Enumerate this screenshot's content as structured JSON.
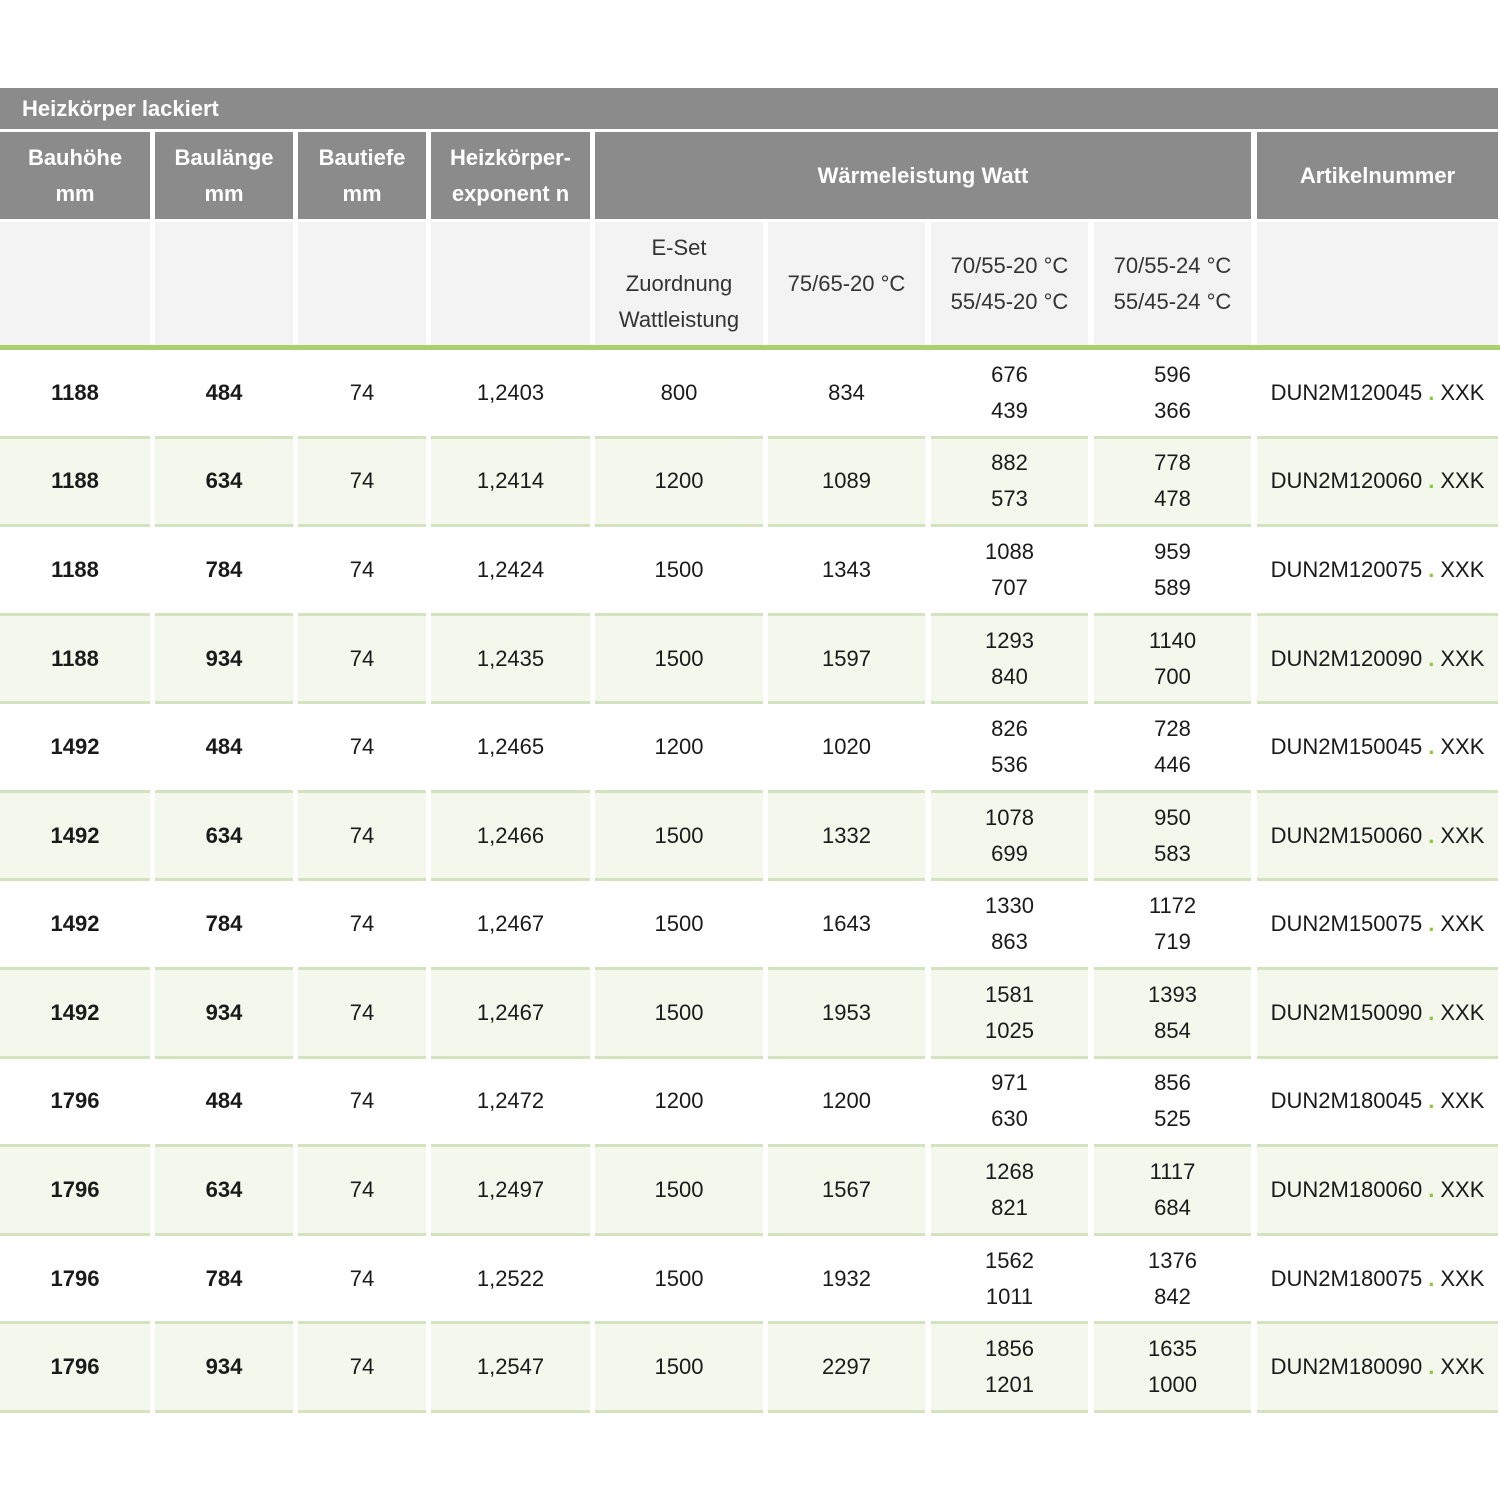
{
  "table": {
    "title": "Heizkörper lackiert",
    "header": [
      [
        "Bauhöhe",
        "mm"
      ],
      [
        "Baulänge",
        "mm"
      ],
      [
        "Bautiefe",
        "mm"
      ],
      [
        "Heizkörper-",
        "exponent n"
      ],
      [
        "Wärmeleistung Watt"
      ],
      [
        "Artikelnummer"
      ]
    ],
    "subheader": [
      [
        "E-Set",
        "Zuordnung",
        "Wattleistung"
      ],
      [
        "75/65-20 °C"
      ],
      [
        "70/55-20 °C",
        "55/45-20 °C"
      ],
      [
        "70/55-24 °C",
        "55/45-24 °C"
      ]
    ],
    "rows": [
      [
        "1188",
        "484",
        "74",
        "1,2403",
        "800",
        "834",
        [
          "676",
          "439"
        ],
        [
          "596",
          "366"
        ],
        [
          "DUN2M120045",
          ".",
          "XXK"
        ]
      ],
      [
        "1188",
        "634",
        "74",
        "1,2414",
        "1200",
        "1089",
        [
          "882",
          "573"
        ],
        [
          "778",
          "478"
        ],
        [
          "DUN2M120060",
          ".",
          "XXK"
        ]
      ],
      [
        "1188",
        "784",
        "74",
        "1,2424",
        "1500",
        "1343",
        [
          "1088",
          "707"
        ],
        [
          "959",
          "589"
        ],
        [
          "DUN2M120075",
          ".",
          "XXK"
        ]
      ],
      [
        "1188",
        "934",
        "74",
        "1,2435",
        "1500",
        "1597",
        [
          "1293",
          "840"
        ],
        [
          "1140",
          "700"
        ],
        [
          "DUN2M120090",
          ".",
          "XXK"
        ]
      ],
      [
        "1492",
        "484",
        "74",
        "1,2465",
        "1200",
        "1020",
        [
          "826",
          "536"
        ],
        [
          "728",
          "446"
        ],
        [
          "DUN2M150045",
          ".",
          "XXK"
        ]
      ],
      [
        "1492",
        "634",
        "74",
        "1,2466",
        "1500",
        "1332",
        [
          "1078",
          "699"
        ],
        [
          "950",
          "583"
        ],
        [
          "DUN2M150060",
          ".",
          "XXK"
        ]
      ],
      [
        "1492",
        "784",
        "74",
        "1,2467",
        "1500",
        "1643",
        [
          "1330",
          "863"
        ],
        [
          "1172",
          "719"
        ],
        [
          "DUN2M150075",
          ".",
          "XXK"
        ]
      ],
      [
        "1492",
        "934",
        "74",
        "1,2467",
        "1500",
        "1953",
        [
          "1581",
          "1025"
        ],
        [
          "1393",
          "854"
        ],
        [
          "DUN2M150090",
          ".",
          "XXK"
        ]
      ],
      [
        "1796",
        "484",
        "74",
        "1,2472",
        "1200",
        "1200",
        [
          "971",
          "630"
        ],
        [
          "856",
          "525"
        ],
        [
          "DUN2M180045",
          ".",
          "XXK"
        ]
      ],
      [
        "1796",
        "634",
        "74",
        "1,2497",
        "1500",
        "1567",
        [
          "1268",
          "821"
        ],
        [
          "1117",
          "684"
        ],
        [
          "DUN2M180060",
          ".",
          "XXK"
        ]
      ],
      [
        "1796",
        "784",
        "74",
        "1,2522",
        "1500",
        "1932",
        [
          "1562",
          "1011"
        ],
        [
          "1376",
          "842"
        ],
        [
          "DUN2M180075",
          ".",
          "XXK"
        ]
      ],
      [
        "1796",
        "934",
        "74",
        "1,2547",
        "1500",
        "2297",
        [
          "1856",
          "1201"
        ],
        [
          "1635",
          "1000"
        ],
        [
          "DUN2M180090",
          ".",
          "XXK"
        ]
      ]
    ]
  }
}
